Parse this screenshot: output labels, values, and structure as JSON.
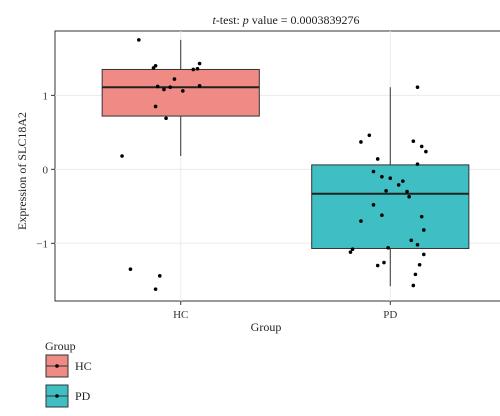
{
  "chart_data": {
    "type": "box",
    "title": {
      "italic_prefix": "t",
      "middle": "-test: ",
      "italic_p": "p",
      "rest": " value = 0.0003839276"
    },
    "xlabel": "Group",
    "ylabel": "Expression of SLC18A2",
    "ylim": [
      -1.78,
      1.87
    ],
    "yticks": [
      -1,
      0,
      1
    ],
    "ytick_labels": [
      "−1",
      "0",
      "1"
    ],
    "categories": [
      "HC",
      "PD"
    ],
    "grid": true,
    "legend_position": "bottom-left",
    "legend": {
      "title": "Group",
      "entries": [
        "HC",
        "PD"
      ]
    },
    "series": [
      {
        "name": "HC",
        "color": "#F08A84",
        "box": {
          "min": 0.18,
          "q1": 0.72,
          "median": 1.11,
          "q3": 1.35,
          "max": 1.75
        },
        "points": [
          [
            0.8,
            1.75
          ],
          [
            1.09,
            1.43
          ],
          [
            0.88,
            1.4
          ],
          [
            0.87,
            1.37
          ],
          [
            1.08,
            1.36
          ],
          [
            1.06,
            1.35
          ],
          [
            0.97,
            1.22
          ],
          [
            1.09,
            1.13
          ],
          [
            0.89,
            1.12
          ],
          [
            0.95,
            1.11
          ],
          [
            0.92,
            1.08
          ],
          [
            1.01,
            1.06
          ],
          [
            0.88,
            0.85
          ],
          [
            0.93,
            0.69
          ],
          [
            0.72,
            0.18
          ],
          [
            0.76,
            -1.35
          ],
          [
            0.9,
            -1.44
          ],
          [
            0.88,
            -1.62
          ]
        ]
      },
      {
        "name": "PD",
        "color": "#3FBFC3",
        "box": {
          "min": -1.58,
          "q1": -1.07,
          "median": -0.33,
          "q3": 0.06,
          "max": 1.11
        },
        "points": [
          [
            2.13,
            1.11
          ],
          [
            1.9,
            0.46
          ],
          [
            2.11,
            0.38
          ],
          [
            1.86,
            0.37
          ],
          [
            2.15,
            0.31
          ],
          [
            2.17,
            0.24
          ],
          [
            1.94,
            0.14
          ],
          [
            2.13,
            0.07
          ],
          [
            1.92,
            -0.03
          ],
          [
            1.96,
            -0.1
          ],
          [
            2.0,
            -0.12
          ],
          [
            2.06,
            -0.16
          ],
          [
            2.04,
            -0.21
          ],
          [
            1.98,
            -0.29
          ],
          [
            2.08,
            -0.3
          ],
          [
            2.09,
            -0.37
          ],
          [
            1.92,
            -0.48
          ],
          [
            1.96,
            -0.62
          ],
          [
            2.15,
            -0.64
          ],
          [
            1.86,
            -0.7
          ],
          [
            2.16,
            -0.82
          ],
          [
            2.1,
            -0.96
          ],
          [
            2.13,
            -1.02
          ],
          [
            1.99,
            -1.06
          ],
          [
            1.82,
            -1.08
          ],
          [
            1.81,
            -1.12
          ],
          [
            2.16,
            -1.15
          ],
          [
            1.97,
            -1.26
          ],
          [
            1.94,
            -1.3
          ],
          [
            2.14,
            -1.29
          ],
          [
            2.12,
            -1.42
          ],
          [
            2.11,
            -1.57
          ]
        ]
      }
    ]
  }
}
